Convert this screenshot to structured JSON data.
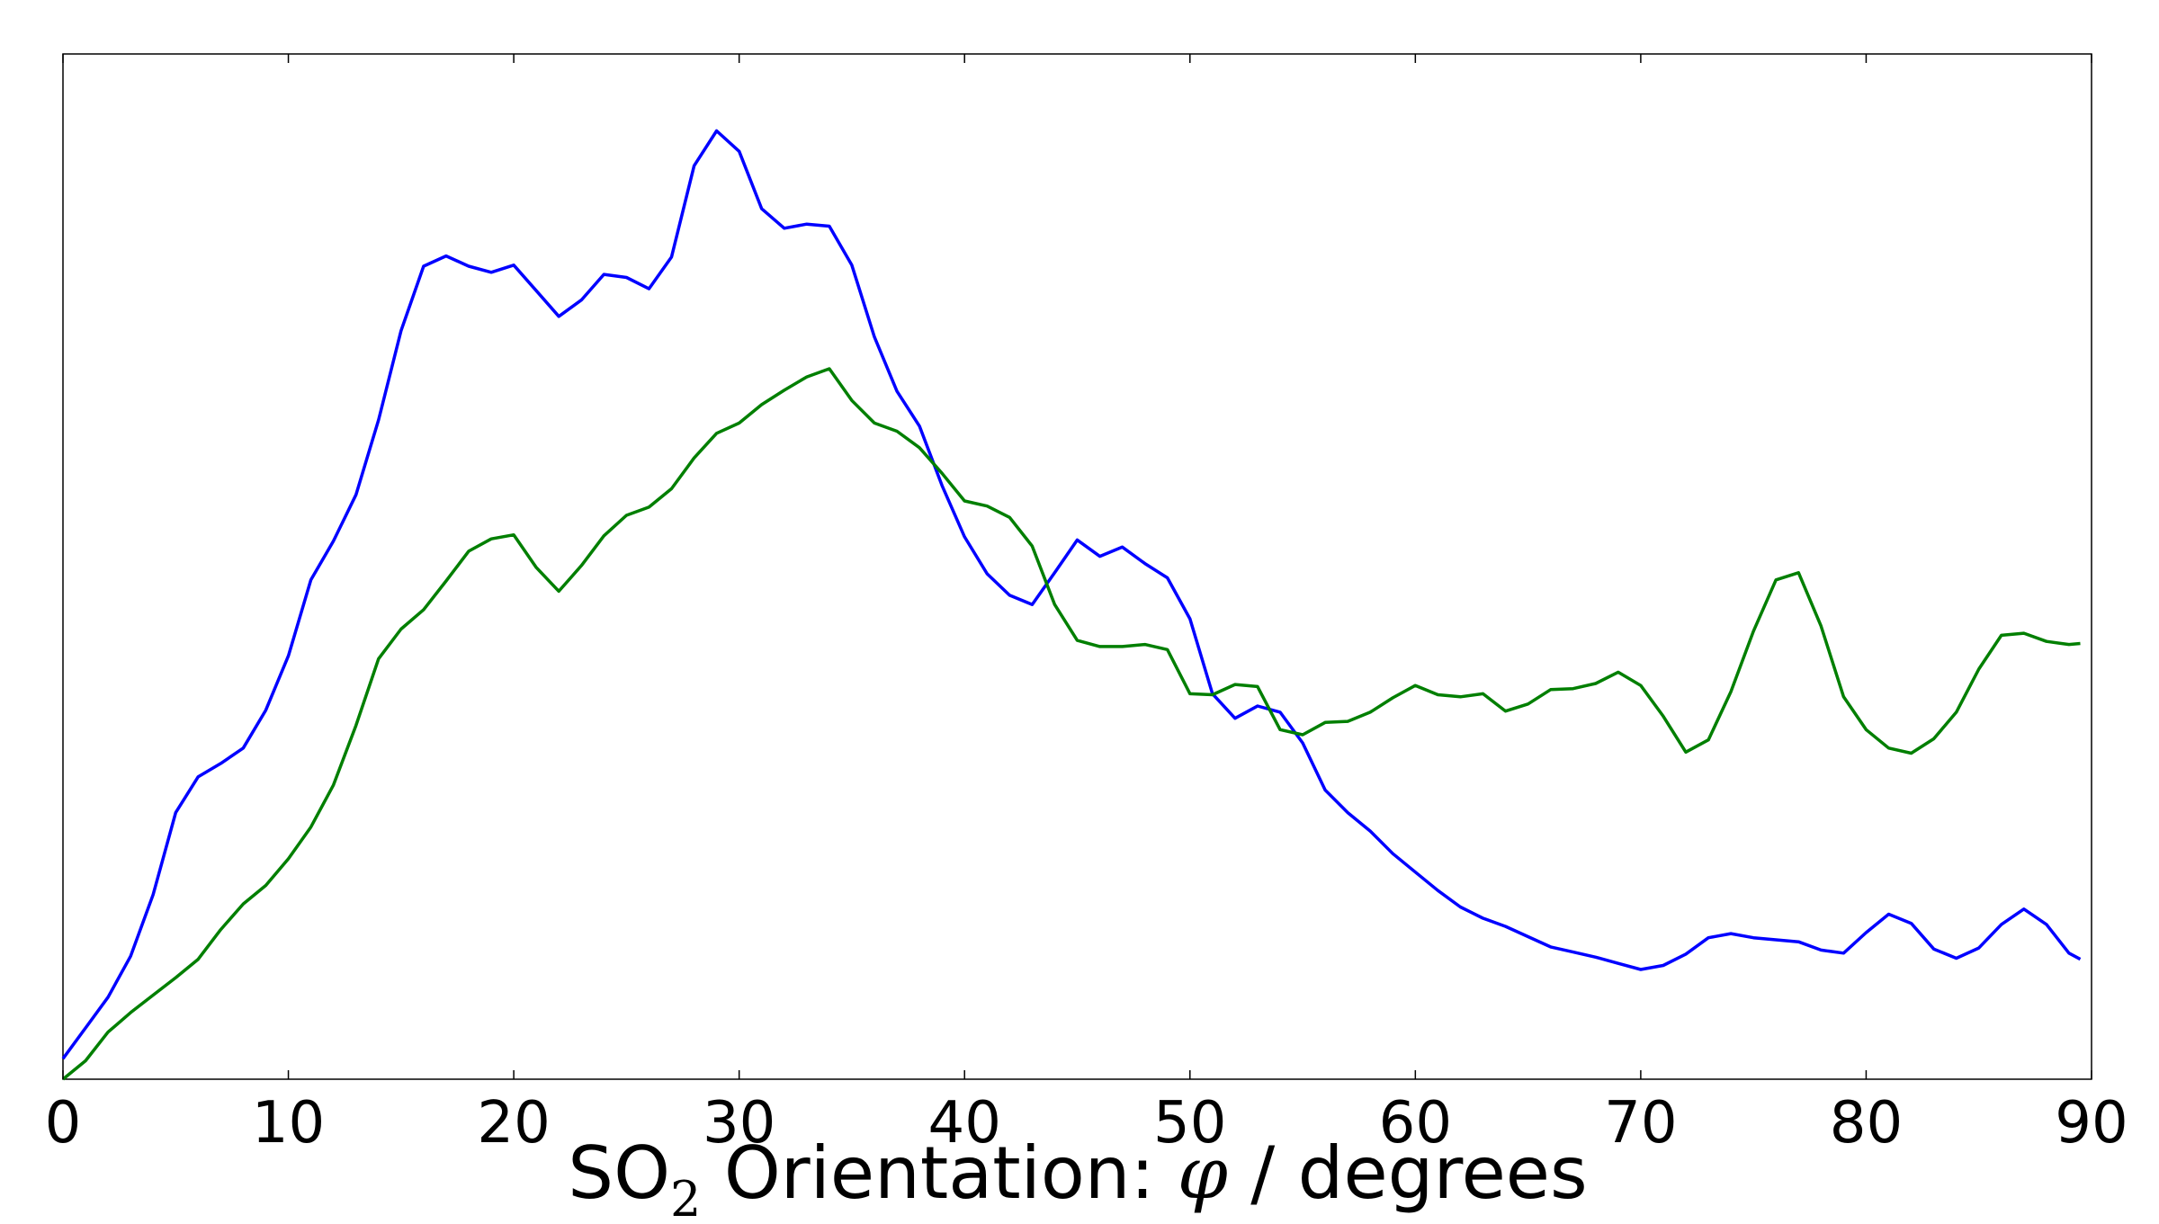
{
  "chart_data": {
    "type": "line",
    "xlabel": {
      "prefix": "SO",
      "subscript": "2",
      "middle": " Orientation: ",
      "symbol": "φ",
      "suffix": " / degrees"
    },
    "xlim": [
      0,
      90
    ],
    "ylim": [
      0,
      100
    ],
    "xticks": [
      "0",
      "10",
      "20",
      "30",
      "40",
      "50",
      "60",
      "70",
      "80",
      "90"
    ],
    "y_tick_labels_shown": false,
    "grid": false,
    "legend": "none",
    "series": [
      {
        "color": "#0000ff",
        "points": [
          [
            0,
            2
          ],
          [
            1,
            5
          ],
          [
            2,
            8
          ],
          [
            3,
            12
          ],
          [
            4,
            18
          ],
          [
            5,
            26
          ],
          [
            6,
            29.5
          ],
          [
            7,
            30.8
          ],
          [
            8,
            32.3
          ],
          [
            9,
            36
          ],
          [
            10,
            41.3
          ],
          [
            11,
            48.7
          ],
          [
            12,
            52.5
          ],
          [
            13,
            57
          ],
          [
            14,
            64.3
          ],
          [
            15,
            73
          ],
          [
            16,
            79.3
          ],
          [
            17,
            80.3
          ],
          [
            18,
            79.3
          ],
          [
            19,
            78.7
          ],
          [
            20,
            79.4
          ],
          [
            21,
            76.9
          ],
          [
            22,
            74.4
          ],
          [
            23,
            76
          ],
          [
            24,
            78.5
          ],
          [
            25,
            78.2
          ],
          [
            26,
            77.1
          ],
          [
            27,
            80.2
          ],
          [
            28,
            89.1
          ],
          [
            29,
            92.5
          ],
          [
            30,
            90.5
          ],
          [
            31,
            84.9
          ],
          [
            32,
            83
          ],
          [
            33,
            83.4
          ],
          [
            34,
            83.2
          ],
          [
            35,
            79.4
          ],
          [
            36,
            72.4
          ],
          [
            37,
            67.1
          ],
          [
            38,
            63.7
          ],
          [
            39,
            57.9
          ],
          [
            40,
            52.9
          ],
          [
            41,
            49.3
          ],
          [
            42,
            47.2
          ],
          [
            43,
            46.3
          ],
          [
            44,
            49.4
          ],
          [
            45,
            52.6
          ],
          [
            46,
            51
          ],
          [
            47,
            51.9
          ],
          [
            48,
            50.3
          ],
          [
            49,
            48.9
          ],
          [
            50,
            44.9
          ],
          [
            51,
            37.6
          ],
          [
            52,
            35.2
          ],
          [
            53,
            36.4
          ],
          [
            54,
            35.8
          ],
          [
            55,
            32.8
          ],
          [
            56,
            28.2
          ],
          [
            57,
            26
          ],
          [
            58,
            24.2
          ],
          [
            59,
            22
          ],
          [
            60,
            20.2
          ],
          [
            61,
            18.4
          ],
          [
            62,
            16.8
          ],
          [
            63,
            15.7
          ],
          [
            64,
            14.9
          ],
          [
            65,
            13.9
          ],
          [
            66,
            12.9
          ],
          [
            67,
            12.4
          ],
          [
            68,
            11.9
          ],
          [
            69,
            11.3
          ],
          [
            70,
            10.7
          ],
          [
            71,
            11.1
          ],
          [
            72,
            12.2
          ],
          [
            73,
            13.8
          ],
          [
            74,
            14.2
          ],
          [
            75,
            13.8
          ],
          [
            76,
            13.6
          ],
          [
            77,
            13.4
          ],
          [
            78,
            12.6
          ],
          [
            79,
            12.3
          ],
          [
            80,
            14.3
          ],
          [
            81,
            16.1
          ],
          [
            82,
            15.2
          ],
          [
            83,
            12.7
          ],
          [
            84,
            11.8
          ],
          [
            85,
            12.8
          ],
          [
            86,
            15.1
          ],
          [
            87,
            16.6
          ],
          [
            88,
            15.1
          ],
          [
            89,
            12.3
          ],
          [
            89.5,
            11.7
          ]
        ]
      },
      {
        "color": "#007f00",
        "points": [
          [
            0,
            0
          ],
          [
            1,
            1.8
          ],
          [
            2,
            4.6
          ],
          [
            3,
            6.5
          ],
          [
            4,
            8.2
          ],
          [
            5,
            9.9
          ],
          [
            6,
            11.7
          ],
          [
            7,
            14.6
          ],
          [
            8,
            17.1
          ],
          [
            9,
            18.9
          ],
          [
            10,
            21.5
          ],
          [
            11,
            24.6
          ],
          [
            12,
            28.7
          ],
          [
            13,
            34.5
          ],
          [
            14,
            41
          ],
          [
            15,
            43.9
          ],
          [
            16,
            45.8
          ],
          [
            17,
            48.6
          ],
          [
            18,
            51.5
          ],
          [
            19,
            52.7
          ],
          [
            20,
            53.1
          ],
          [
            21,
            49.9
          ],
          [
            22,
            47.6
          ],
          [
            23,
            50.1
          ],
          [
            24,
            53
          ],
          [
            25,
            55
          ],
          [
            26,
            55.8
          ],
          [
            27,
            57.6
          ],
          [
            28,
            60.6
          ],
          [
            29,
            63
          ],
          [
            30,
            64
          ],
          [
            31,
            65.8
          ],
          [
            32,
            67.2
          ],
          [
            33,
            68.5
          ],
          [
            34,
            69.3
          ],
          [
            35,
            66.2
          ],
          [
            36,
            64
          ],
          [
            37,
            63.2
          ],
          [
            38,
            61.6
          ],
          [
            39,
            59.1
          ],
          [
            40,
            56.4
          ],
          [
            41,
            55.9
          ],
          [
            42,
            54.8
          ],
          [
            43,
            52
          ],
          [
            44,
            46.3
          ],
          [
            45,
            42.8
          ],
          [
            46,
            42.2
          ],
          [
            47,
            42.2
          ],
          [
            48,
            42.4
          ],
          [
            49,
            41.9
          ],
          [
            50,
            37.6
          ],
          [
            51,
            37.5
          ],
          [
            52,
            38.5
          ],
          [
            53,
            38.3
          ],
          [
            54,
            34.1
          ],
          [
            55,
            33.6
          ],
          [
            56,
            34.8
          ],
          [
            57,
            34.9
          ],
          [
            58,
            35.8
          ],
          [
            59,
            37.2
          ],
          [
            60,
            38.4
          ],
          [
            61,
            37.5
          ],
          [
            62,
            37.3
          ],
          [
            63,
            37.6
          ],
          [
            64,
            35.9
          ],
          [
            65,
            36.6
          ],
          [
            66,
            38
          ],
          [
            67,
            38.1
          ],
          [
            68,
            38.6
          ],
          [
            69,
            39.7
          ],
          [
            70,
            38.4
          ],
          [
            71,
            35.4
          ],
          [
            72,
            31.9
          ],
          [
            73,
            33.1
          ],
          [
            74,
            37.8
          ],
          [
            75,
            43.7
          ],
          [
            76,
            48.7
          ],
          [
            77,
            49.4
          ],
          [
            78,
            44.2
          ],
          [
            79,
            37.3
          ],
          [
            80,
            34.1
          ],
          [
            81,
            32.3
          ],
          [
            82,
            31.8
          ],
          [
            83,
            33.2
          ],
          [
            84,
            35.8
          ],
          [
            85,
            40
          ],
          [
            86,
            43.3
          ],
          [
            87,
            43.5
          ],
          [
            88,
            42.7
          ],
          [
            89,
            42.4
          ],
          [
            89.5,
            42.5
          ]
        ]
      }
    ]
  }
}
